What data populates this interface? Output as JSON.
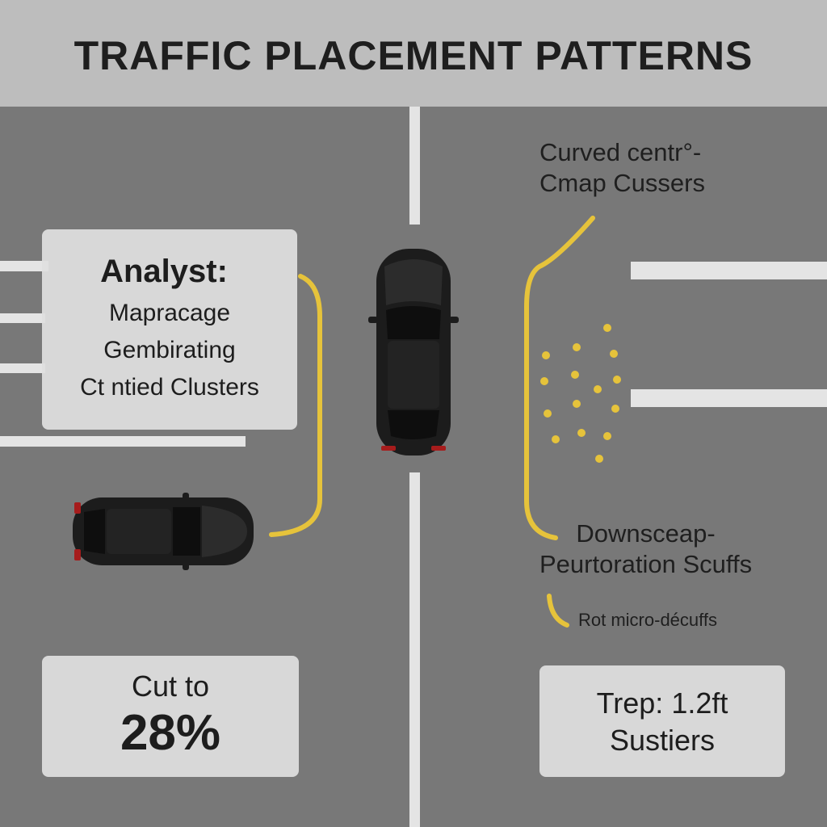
{
  "header": {
    "title": "TRAFFIC PLACEMENT PATTERNS"
  },
  "panels": {
    "analyst": {
      "heading": "Analyst:",
      "lines": [
        "Mapracage",
        "Gembirating",
        "Ct ntied Clusters"
      ]
    },
    "cut": {
      "line1": "Cut to",
      "value": "28%"
    },
    "trep": {
      "line1": "Trep: 1.2ft",
      "line2": "Sustiers"
    }
  },
  "labels": {
    "curved": [
      "Curved centr°-",
      "Cmap Cussers"
    ],
    "downscape": [
      "Downsceap-",
      "Peurtoration Scuffs"
    ],
    "rot": "Rot micro-décuffs"
  },
  "colors": {
    "asphalt": "#777777",
    "lane_marking": "#e4e4e4",
    "yellow_marking": "#e6c33b",
    "car_body": "#1c1c1c",
    "tail_light": "#a61c1c",
    "header_band": "#bdbdbd"
  }
}
